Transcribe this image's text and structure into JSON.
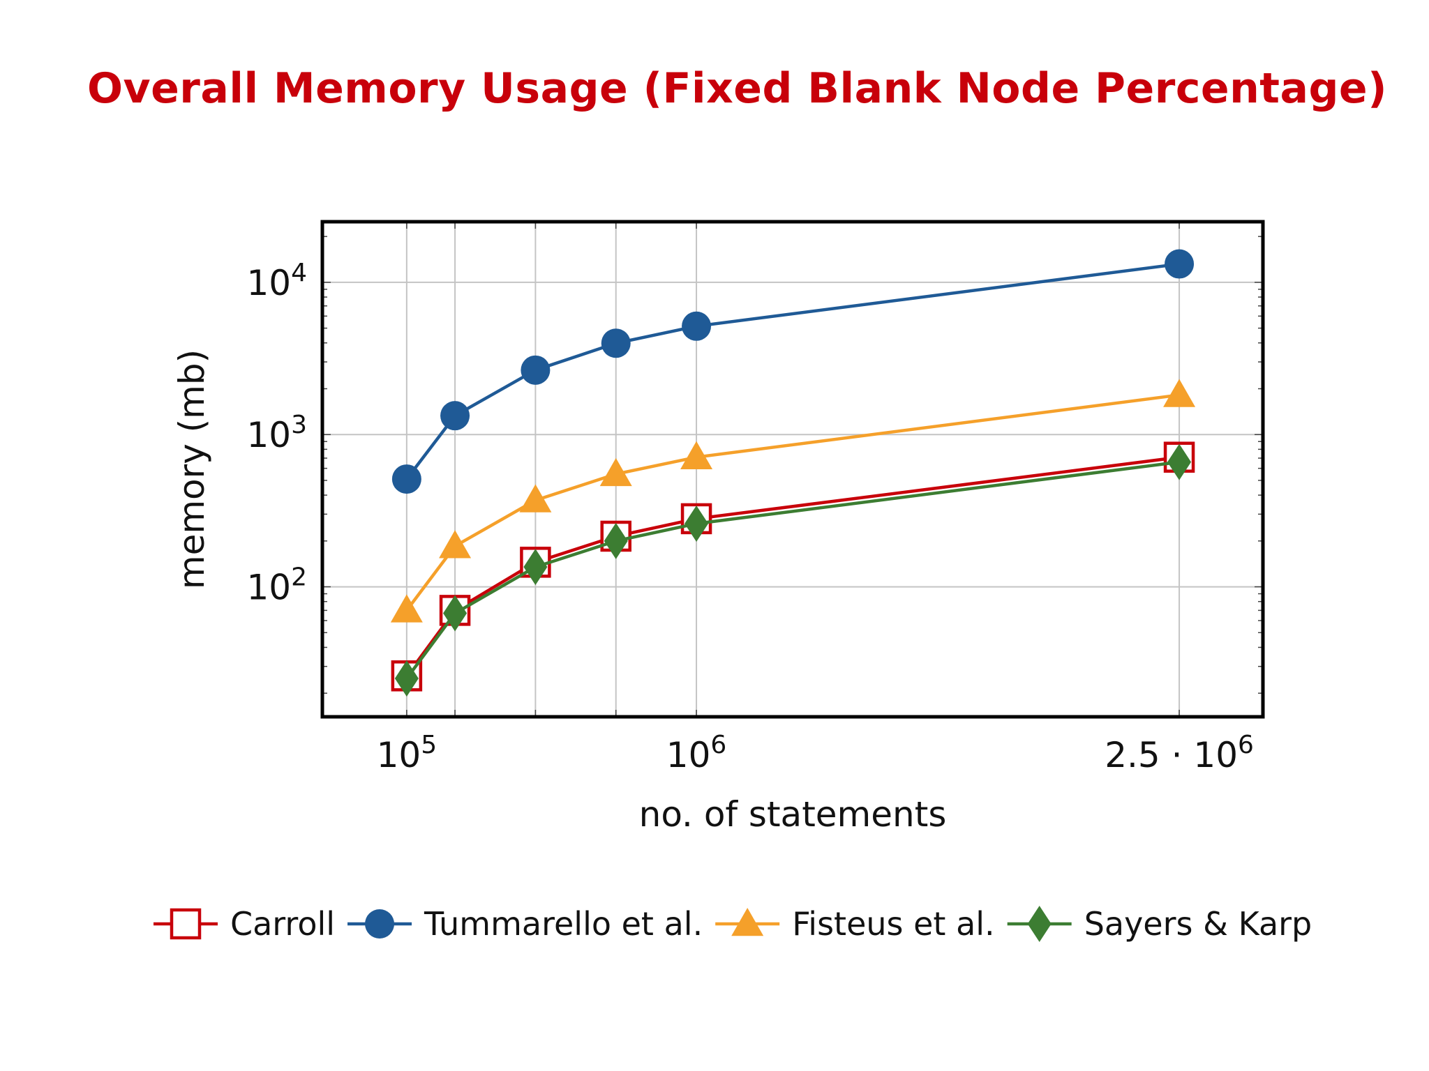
{
  "slide": {
    "title": "Overall Memory Usage (Fixed Blank Node Percentage)",
    "title_color": "#c8000a"
  },
  "chart_data": {
    "type": "line",
    "title": "",
    "xlabel": "no. of statements",
    "ylabel": "memory (mb)",
    "x_scale": "linear",
    "y_scale": "log",
    "xlim": [
      -162000,
      2760000
    ],
    "ylim": [
      14,
      25000
    ],
    "grid": true,
    "legend_position": "bottom",
    "x_ticks": [
      {
        "value": 100000,
        "base": "10",
        "exp": "5"
      },
      {
        "value": 1000000,
        "base": "10",
        "exp": "6"
      },
      {
        "value": 2500000,
        "base": "2.5 · 10",
        "exp": "6"
      }
    ],
    "x_grid_values": [
      100000,
      250000,
      500000,
      750000,
      1000000,
      2500000
    ],
    "y_ticks": [
      {
        "value": 100,
        "base": "10",
        "exp": "2"
      },
      {
        "value": 1000,
        "base": "10",
        "exp": "3"
      },
      {
        "value": 10000,
        "base": "10",
        "exp": "4"
      }
    ],
    "x": [
      100000,
      250000,
      500000,
      750000,
      1000000,
      2500000
    ],
    "series": [
      {
        "name": "Carroll",
        "color": "#c8000a",
        "marker": "square-open",
        "values": [
          26,
          70,
          145,
          215,
          280,
          710
        ]
      },
      {
        "name": "Tummarello et al.",
        "color": "#1f5a96",
        "marker": "circle",
        "values": [
          510,
          1330,
          2650,
          3980,
          5150,
          13200
        ]
      },
      {
        "name": "Fisteus et al.",
        "color": "#f5a02a",
        "marker": "triangle",
        "values": [
          70,
          185,
          370,
          550,
          710,
          1820
        ]
      },
      {
        "name": "Sayers & Karp",
        "color": "#3c7d32",
        "marker": "diamond",
        "values": [
          25,
          67,
          135,
          200,
          260,
          660
        ]
      }
    ]
  }
}
